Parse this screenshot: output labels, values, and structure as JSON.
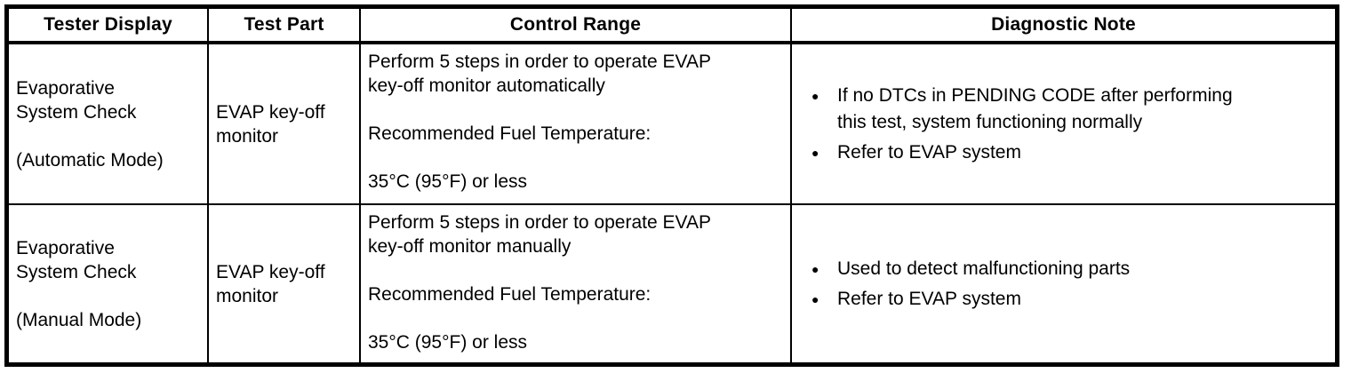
{
  "colors": {
    "border": "#000000",
    "text": "#000000",
    "background": "#ffffff"
  },
  "icons": {
    "bullet": "●"
  },
  "table": {
    "headers": [
      "Tester Display",
      "Test Part",
      "Control Range",
      "Diagnostic Note"
    ],
    "rows": [
      {
        "tester_display": "Evaporative\nSystem Check\n\n(Automatic Mode)",
        "test_part": "EVAP key-off\nmonitor",
        "control_range": "Perform 5 steps in order to operate EVAP\nkey-off monitor automatically\n\nRecommended Fuel Temperature:\n\n35°C (95°F) or less",
        "notes": [
          "If no DTCs in PENDING CODE after performing\nthis test, system functioning normally",
          "Refer to EVAP system"
        ]
      },
      {
        "tester_display": "Evaporative\nSystem Check\n\n(Manual Mode)",
        "test_part": "EVAP key-off\nmonitor",
        "control_range": "Perform 5 steps in order to operate EVAP\nkey-off monitor manually\n\nRecommended Fuel Temperature:\n\n35°C (95°F) or less",
        "notes": [
          "Used to detect malfunctioning parts",
          "Refer to EVAP system"
        ]
      }
    ]
  }
}
